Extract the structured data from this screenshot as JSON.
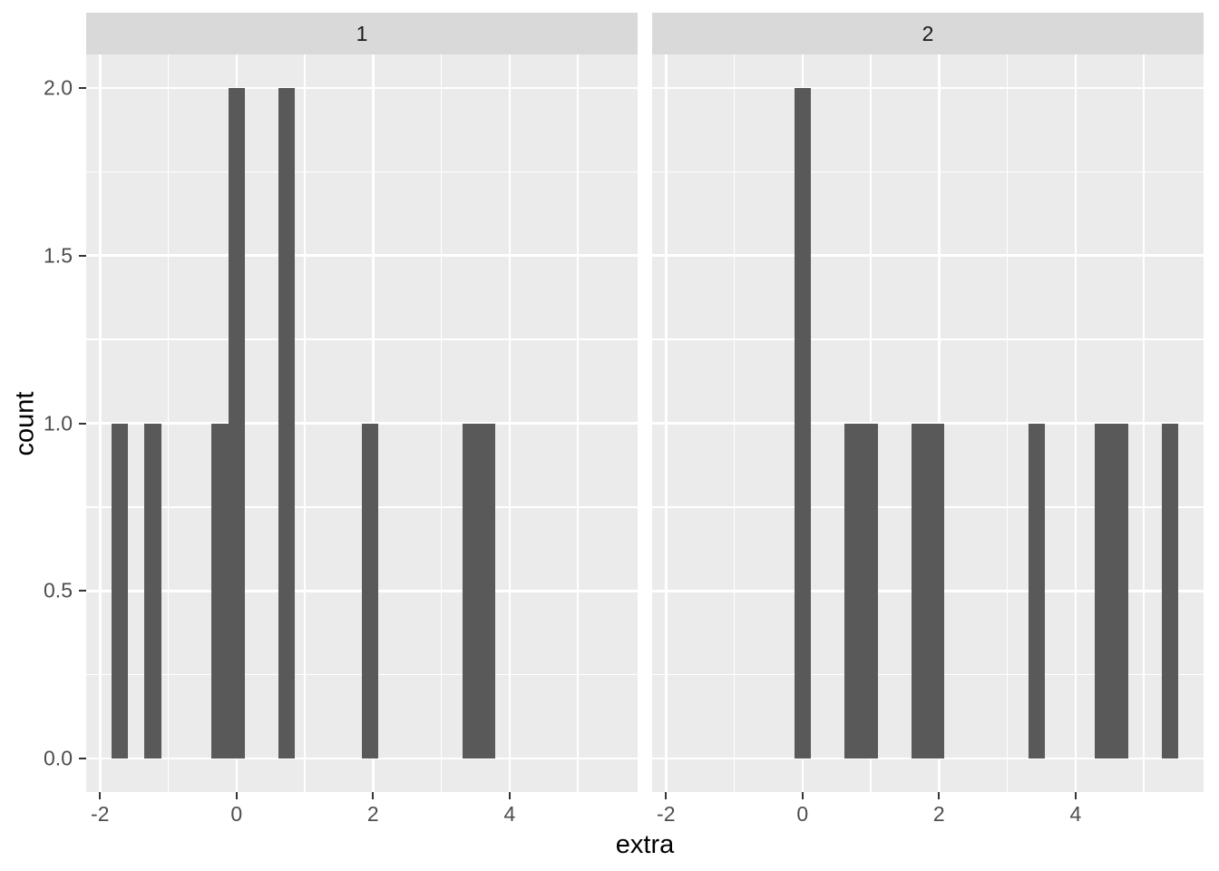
{
  "chart_data": {
    "type": "bar",
    "subtype": "histogram",
    "title": "",
    "xlabel": "extra",
    "ylabel": "count",
    "facet_labels": [
      "1",
      "2"
    ],
    "binwidth": 0.2448,
    "xlim": [
      -2.203,
      5.875
    ],
    "ylim": [
      -0.1,
      2.1
    ],
    "x_ticks": [
      -2,
      0,
      2,
      4
    ],
    "x_tick_labels": [
      "-2",
      "0",
      "2",
      "4"
    ],
    "x_minor_ticks": [
      -1,
      1,
      3,
      5
    ],
    "y_ticks": [
      0,
      0.5,
      1,
      1.5,
      2
    ],
    "y_tick_labels": [
      "0.0",
      "0.5",
      "1.0",
      "1.5",
      "2.0"
    ],
    "y_minor_ticks": [
      0.25,
      0.75,
      1.25,
      1.75
    ],
    "grid": true,
    "legend_position": "none",
    "facets": [
      {
        "label": "1",
        "bins": [
          {
            "center": -1.7136,
            "count": 1
          },
          {
            "center": -1.224,
            "count": 1
          },
          {
            "center": -0.2448,
            "count": 1
          },
          {
            "center": 0,
            "count": 2
          },
          {
            "center": 0.7344,
            "count": 2
          },
          {
            "center": 1.9584,
            "count": 1
          },
          {
            "center": 3.4272,
            "count": 1
          },
          {
            "center": 3.672,
            "count": 1
          }
        ]
      },
      {
        "label": "2",
        "bins": [
          {
            "center": 0,
            "count": 2
          },
          {
            "center": 0.7344,
            "count": 1
          },
          {
            "center": 0.9792,
            "count": 1
          },
          {
            "center": 1.7136,
            "count": 1
          },
          {
            "center": 1.9584,
            "count": 1
          },
          {
            "center": 3.4272,
            "count": 1
          },
          {
            "center": 4.4064,
            "count": 1
          },
          {
            "center": 4.6512,
            "count": 1
          },
          {
            "center": 5.3856,
            "count": 1
          }
        ]
      }
    ],
    "colors": {
      "background": "#FFFFFF",
      "panel_background": "#EBEBEB",
      "strip_background": "#D9D9D9",
      "strip_text": "#1A1A1A",
      "bar_fill": "#595959",
      "gridline": "#FFFFFF",
      "tick_mark": "#333333",
      "tick_label": "#4D4D4D",
      "axis_title": "#000000"
    }
  }
}
